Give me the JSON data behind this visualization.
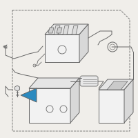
{
  "bg_color": "#f0eeea",
  "line_color": "#666666",
  "highlight_color": "#2b8abf",
  "lw": 0.7
}
